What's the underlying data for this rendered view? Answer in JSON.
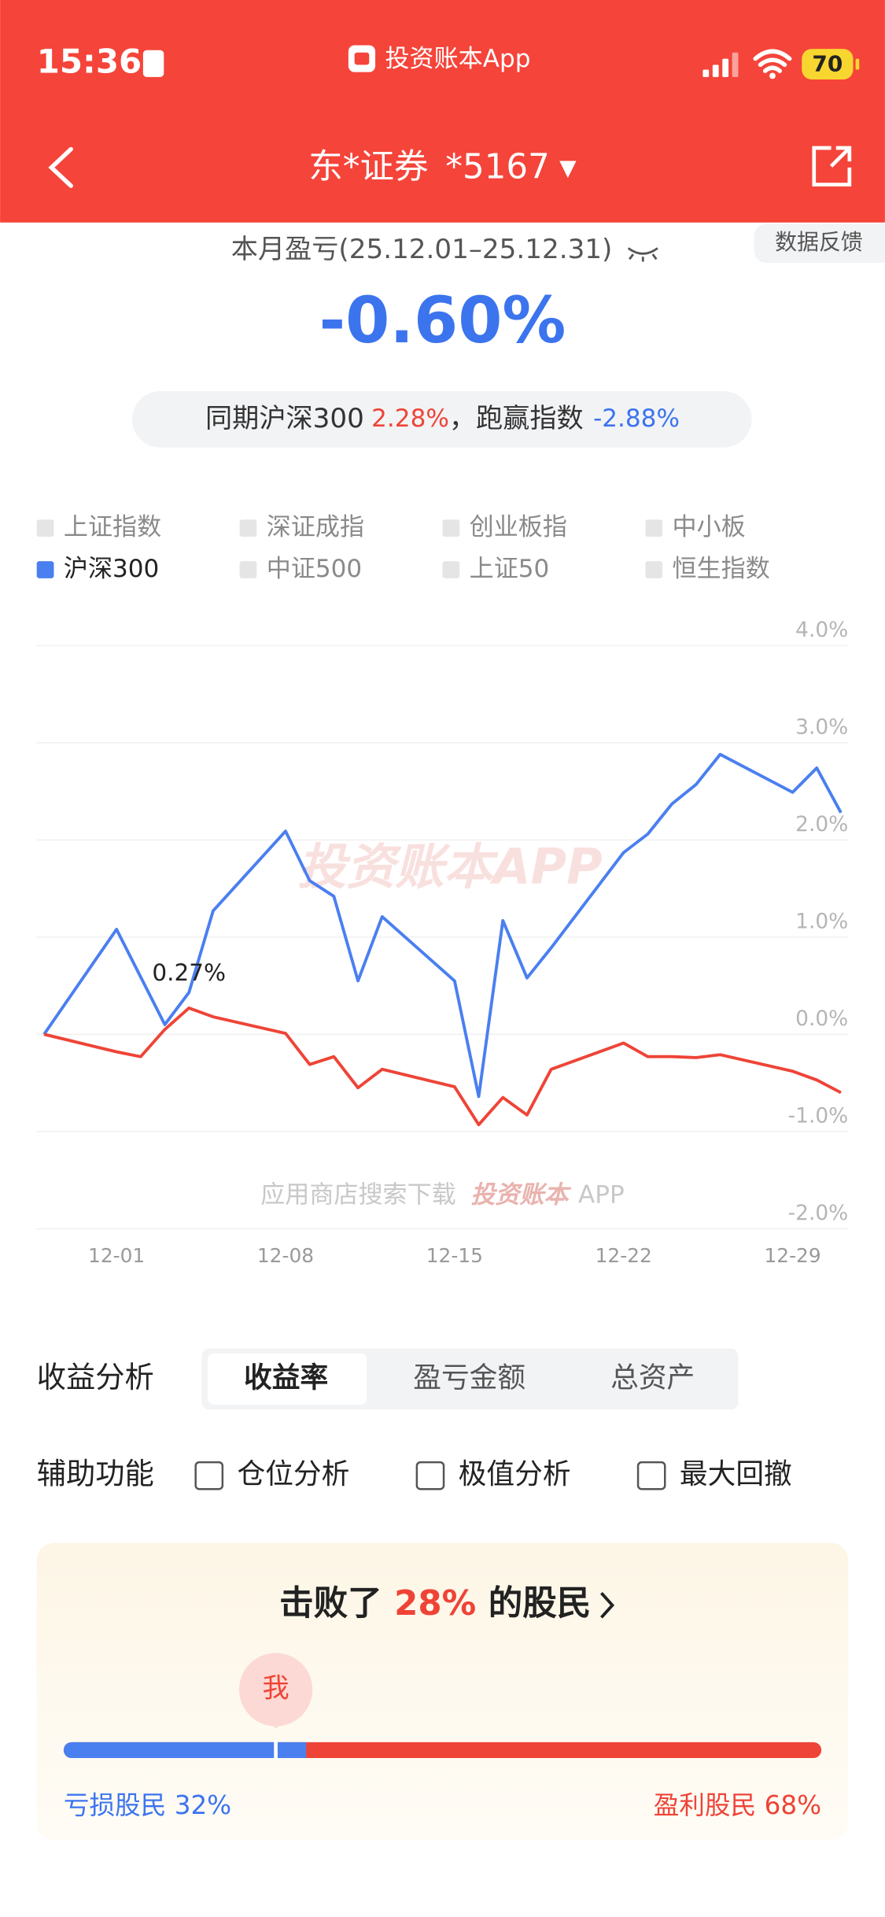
{
  "status_bar": {
    "time": "15:36",
    "app": "投资账本App",
    "battery": "70"
  },
  "nav": {
    "broker": "东*证券",
    "account": "*5167"
  },
  "summary": {
    "period_label": "本月盈亏(25.12.01–25.12.31)",
    "feedback": "数据反馈",
    "return": "-0.60%",
    "benchmark_prefix": "同期沪深300",
    "benchmark_value": "2.28%",
    "beat_label": "，跑赢指数",
    "beat_value": "-2.88%"
  },
  "chart_data": {
    "type": "line",
    "other_indices": [
      "上证指数",
      "深证成指",
      "创业板指",
      "中小板",
      "中证500",
      "上证50",
      "恒生指数"
    ],
    "x": [
      "11-28",
      "12-01",
      "12-02",
      "12-03",
      "12-04",
      "12-05",
      "12-08",
      "12-09",
      "12-10",
      "12-11",
      "12-12",
      "12-15",
      "12-16",
      "12-17",
      "12-18",
      "12-19",
      "12-22",
      "12-23",
      "12-24",
      "12-25",
      "12-26",
      "12-29",
      "12-30",
      "12-31"
    ],
    "xlim": [
      "11-28",
      "12-31"
    ],
    "xticks": [
      "12-01",
      "12-08",
      "12-15",
      "12-22",
      "12-29"
    ],
    "ylim": [
      -2,
      4
    ],
    "yticks": [
      {
        "value": 4,
        "label": "4.0%"
      },
      {
        "value": 3,
        "label": "3.0%"
      },
      {
        "value": 2,
        "label": "2.0%"
      },
      {
        "value": 1,
        "label": "1.0%"
      },
      {
        "value": 0,
        "label": "0.0%"
      },
      {
        "value": -1,
        "label": "-1.0%"
      },
      {
        "value": -2,
        "label": "-2.0%"
      }
    ],
    "grid": true,
    "series": [
      {
        "name": "沪深300",
        "color": "#4a7ff0",
        "values": [
          0,
          1.08,
          0.59,
          0.1,
          0.43,
          1.27,
          2.09,
          1.58,
          1.42,
          0.55,
          1.21,
          0.55,
          -0.64,
          1.17,
          0.58,
          0.89,
          1.87,
          2.06,
          2.37,
          2.57,
          2.88,
          2.49,
          2.74,
          2.28
        ]
      },
      {
        "color": "#ee4437",
        "values": [
          0,
          -0.18,
          -0.23,
          0.05,
          0.27,
          0.18,
          0.01,
          -0.31,
          -0.23,
          -0.55,
          -0.36,
          -0.54,
          -0.93,
          -0.65,
          -0.83,
          -0.36,
          -0.09,
          -0.23,
          -0.23,
          -0.24,
          -0.21,
          -0.38,
          -0.47,
          -0.6
        ],
        "value_labels": [
          null,
          null,
          null,
          null,
          "0.27%",
          null,
          null,
          null,
          null,
          null,
          null,
          null,
          null,
          null,
          null,
          null,
          null,
          null,
          null,
          null,
          null,
          null,
          null,
          null
        ]
      }
    ],
    "watermark": "投资账本APP",
    "footer_note": "应用商店搜索下载",
    "footer_brand": "投资账本",
    "footer_suffix": "APP"
  },
  "analysis": {
    "label": "收益分析",
    "tabs": [
      "收益率",
      "盈亏金额",
      "总资产"
    ],
    "active_tab": 0
  },
  "tools": {
    "label": "辅助功能",
    "options": [
      "仓位分析",
      "极值分析",
      "最大回撤"
    ]
  },
  "ranking": {
    "prefix": "击败了",
    "beat": {
      "value": 28,
      "label": "28%"
    },
    "suffix": "的股民",
    "me": "我",
    "loss": {
      "value": 32,
      "label": "亏损股民 32%"
    },
    "profit": {
      "value": 68,
      "label": "盈利股民 68%"
    }
  }
}
